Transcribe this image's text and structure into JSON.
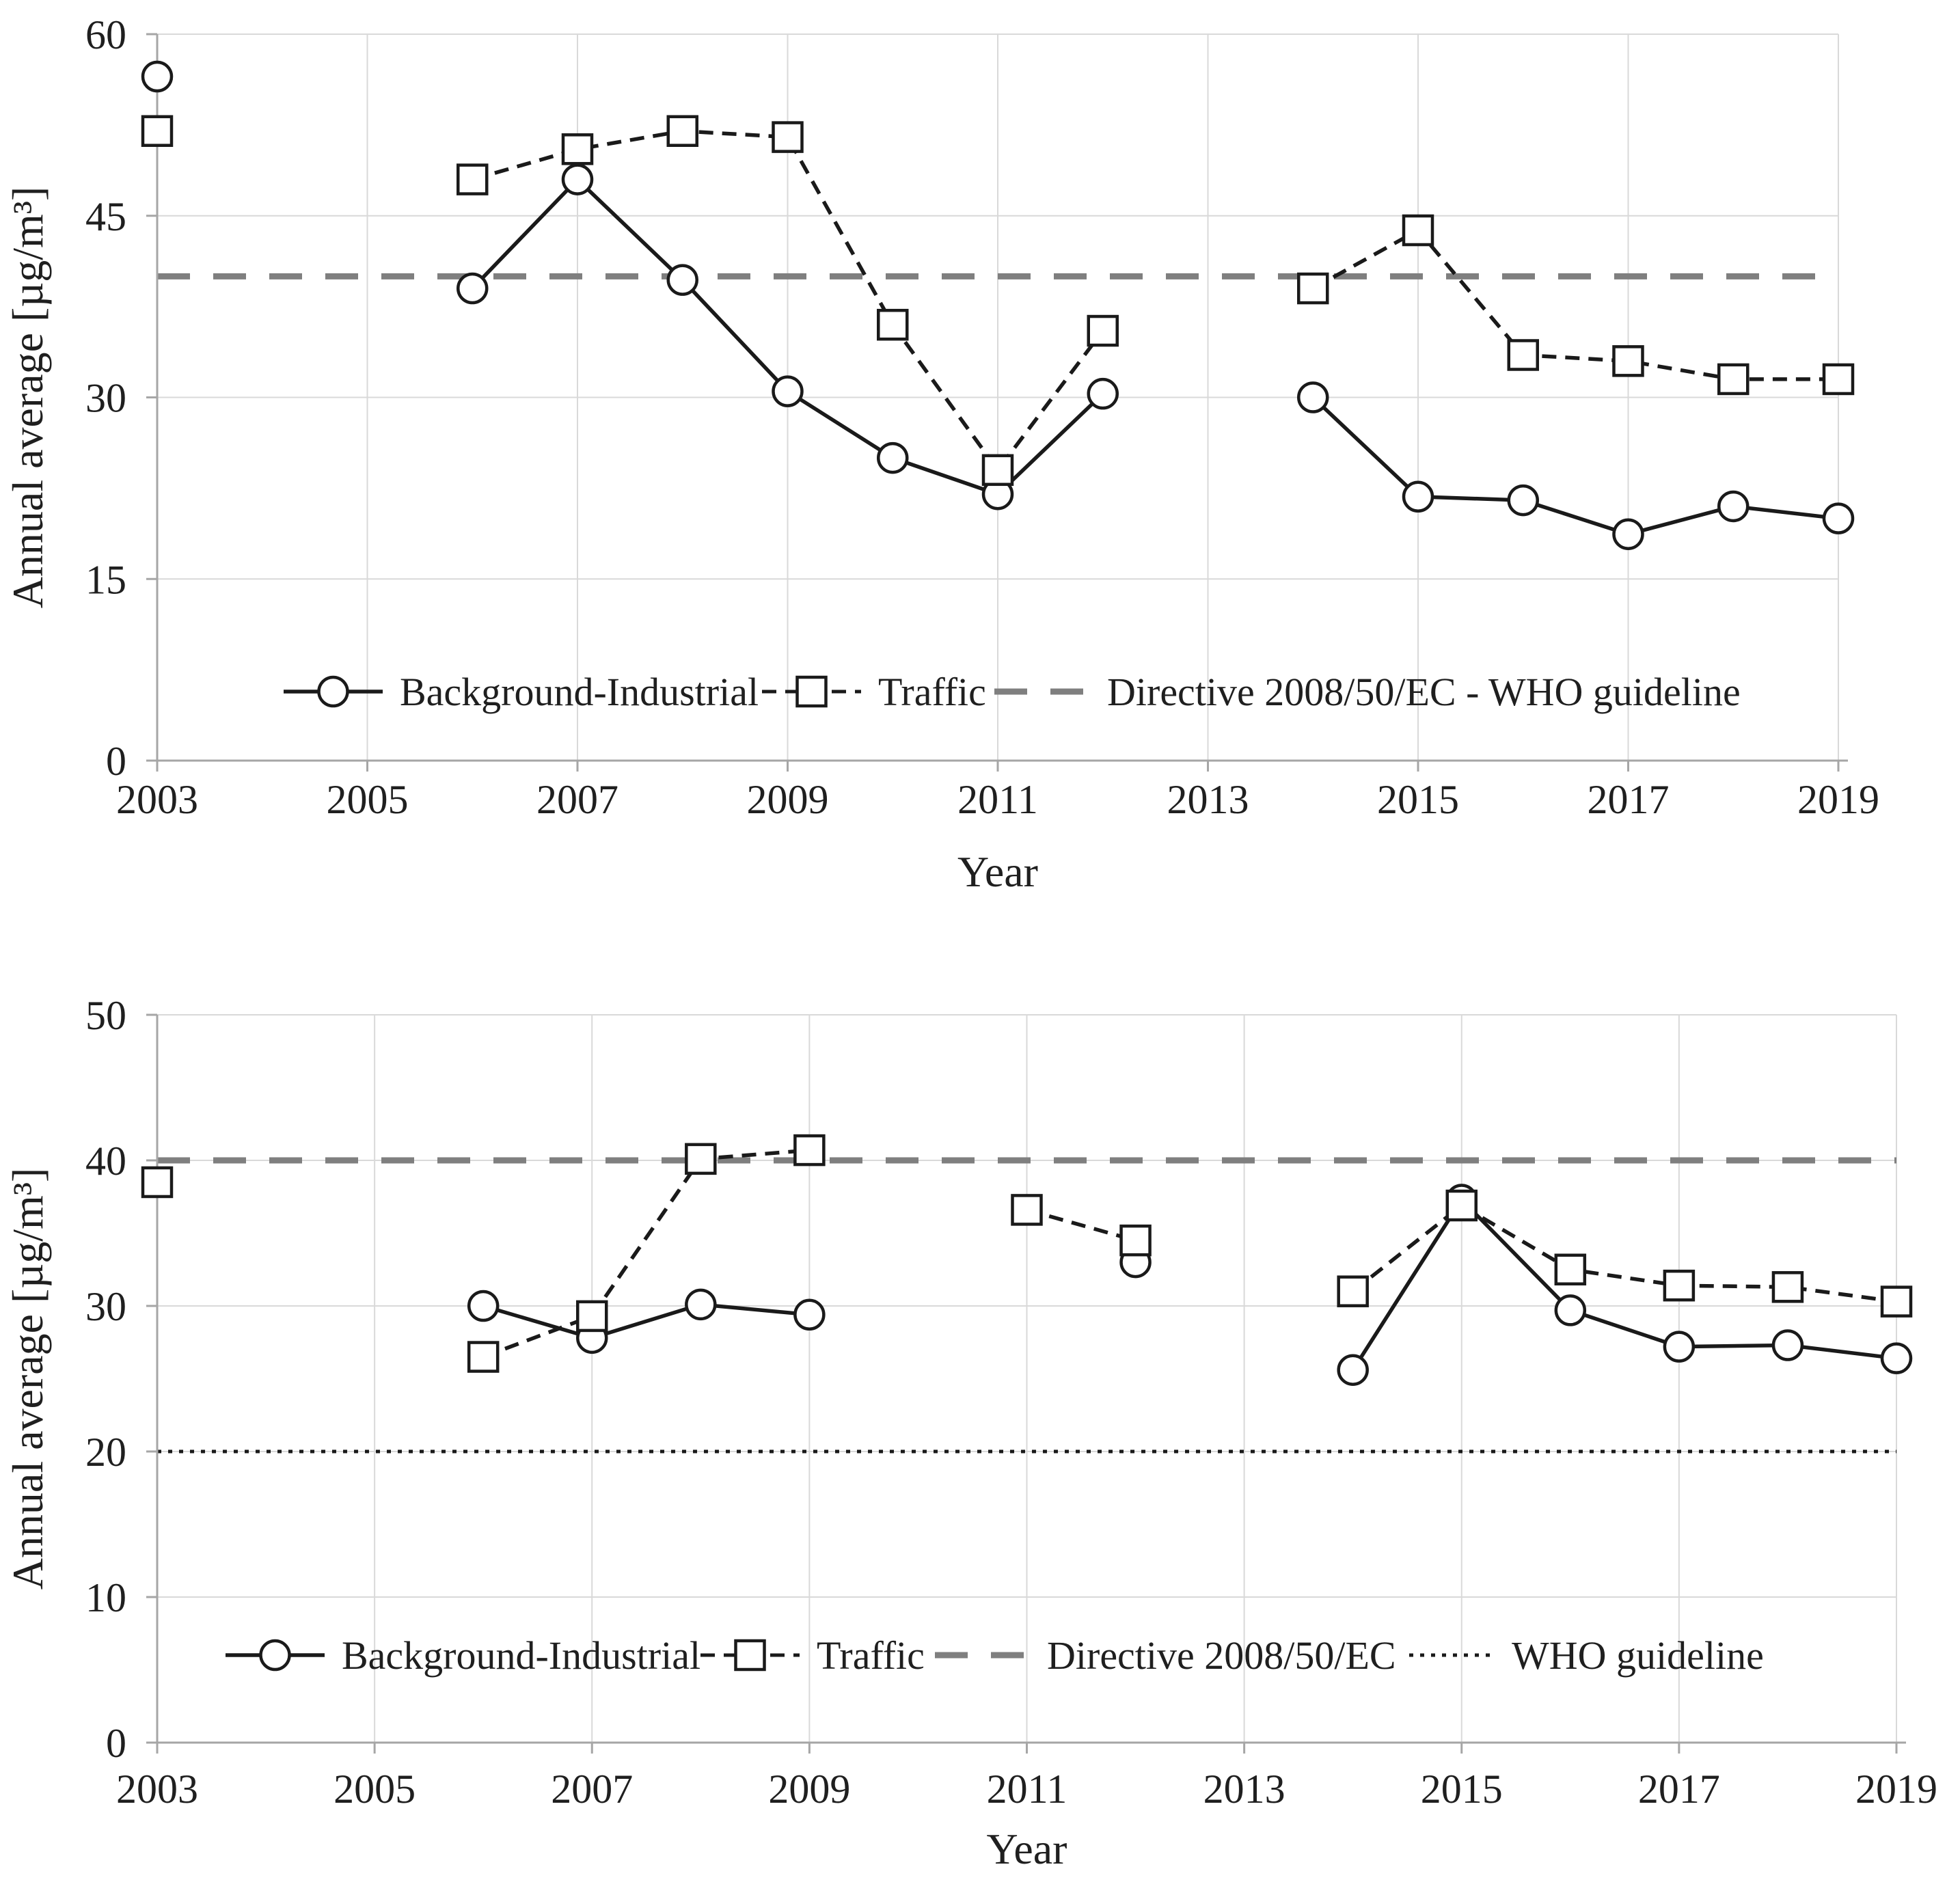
{
  "figure": {
    "background": "#ffffff",
    "x_axis_label": "Year",
    "y_axis_label": "Annual average [µg/m³]"
  },
  "colors": {
    "series": "#1a1a1a",
    "directive": "#7f7f7f",
    "grid": "#d9d9d9",
    "axis": "#a6a6a6",
    "text": "#1f1f1f",
    "marker_fill": "#ffffff"
  },
  "chart_data": [
    {
      "type": "line",
      "title": "",
      "xlabel": "Year",
      "ylabel": "Annual average [µg/m³]",
      "xlim": [
        2003,
        2019
      ],
      "ylim": [
        0,
        60
      ],
      "x_ticks": [
        2003,
        2005,
        2007,
        2009,
        2011,
        2013,
        2015,
        2017,
        2019
      ],
      "y_ticks": [
        0,
        15,
        30,
        45,
        60
      ],
      "grid": true,
      "legend_position": "inside-bottom",
      "series": [
        {
          "name": "Background-Industrial",
          "marker": "circle",
          "line": "solid",
          "segments": [
            [
              [
                2006,
                39
              ],
              [
                2007,
                48
              ],
              [
                2008,
                39.7
              ],
              [
                2009,
                30.5
              ],
              [
                2010,
                25
              ],
              [
                2011,
                22
              ],
              [
                2012,
                30.3
              ]
            ],
            [
              [
                2014,
                30
              ],
              [
                2015,
                21.8
              ],
              [
                2016,
                21.5
              ],
              [
                2017,
                18.7
              ],
              [
                2018,
                21
              ],
              [
                2019,
                20
              ]
            ]
          ],
          "isolated": [
            [
              2003,
              56.5
            ]
          ]
        },
        {
          "name": "Traffic",
          "marker": "square",
          "line": "dashed",
          "segments": [
            [
              [
                2006,
                48
              ],
              [
                2007,
                50.5
              ],
              [
                2008,
                52
              ],
              [
                2009,
                51.5
              ],
              [
                2010,
                36
              ],
              [
                2011,
                24
              ],
              [
                2012,
                35.5
              ]
            ],
            [
              [
                2014,
                39
              ],
              [
                2015,
                43.8
              ],
              [
                2016,
                33.5
              ],
              [
                2017,
                33
              ],
              [
                2018,
                31.5
              ],
              [
                2019,
                31.5
              ]
            ]
          ],
          "isolated": [
            [
              2003,
              52
            ]
          ]
        }
      ],
      "guidelines": [
        {
          "label": "Directive 2008/50/EC - WHO guideline",
          "value": 40,
          "style": "dash",
          "color": "#7f7f7f"
        }
      ],
      "legend": [
        "Background-Industrial",
        "Traffic",
        "Directive 2008/50/EC - WHO guideline"
      ]
    },
    {
      "type": "line",
      "title": "",
      "xlabel": "Year",
      "ylabel": "Annual average [µg/m³]",
      "xlim": [
        2003,
        2019
      ],
      "ylim": [
        0,
        50
      ],
      "x_ticks": [
        2003,
        2005,
        2007,
        2009,
        2011,
        2013,
        2015,
        2017,
        2019
      ],
      "y_ticks": [
        0,
        10,
        20,
        30,
        40,
        50
      ],
      "grid": true,
      "legend_position": "inside-bottom",
      "series": [
        {
          "name": "Background-Industrial",
          "marker": "circle",
          "line": "solid",
          "segments": [
            [
              [
                2006,
                30
              ],
              [
                2007,
                27.8
              ],
              [
                2008,
                30.1
              ],
              [
                2009,
                29.4
              ]
            ],
            [
              [
                2014,
                25.6
              ],
              [
                2015,
                37.3
              ],
              [
                2016,
                29.7
              ],
              [
                2017,
                27.2
              ],
              [
                2018,
                27.3
              ],
              [
                2019,
                26.4
              ]
            ]
          ],
          "isolated": [
            [
              2012,
              33
            ]
          ]
        },
        {
          "name": "Traffic",
          "marker": "square",
          "line": "dashed",
          "segments": [
            [
              [
                2006,
                26.5
              ],
              [
                2007,
                29.3
              ],
              [
                2008,
                40.1
              ],
              [
                2009,
                40.7
              ]
            ],
            [
              [
                2011,
                36.6
              ],
              [
                2012,
                34.5
              ]
            ],
            [
              [
                2014,
                31
              ],
              [
                2015,
                36.9
              ],
              [
                2016,
                32.5
              ],
              [
                2017,
                31.4
              ],
              [
                2018,
                31.3
              ],
              [
                2019,
                30.3
              ]
            ]
          ],
          "isolated": [
            [
              2003,
              38.5
            ]
          ]
        }
      ],
      "guidelines": [
        {
          "label": "Directive 2008/50/EC",
          "value": 40,
          "style": "dash",
          "color": "#7f7f7f"
        },
        {
          "label": "WHO guideline",
          "value": 20,
          "style": "dotted",
          "color": "#1a1a1a"
        }
      ],
      "legend": [
        "Background-Industrial",
        "Traffic",
        "Directive 2008/50/EC",
        "WHO guideline"
      ]
    }
  ]
}
